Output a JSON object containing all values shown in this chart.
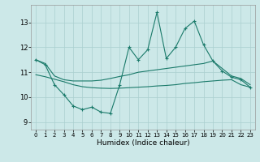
{
  "x": [
    0,
    1,
    2,
    3,
    4,
    5,
    6,
    7,
    8,
    9,
    10,
    11,
    12,
    13,
    14,
    15,
    16,
    17,
    18,
    19,
    20,
    21,
    22,
    23
  ],
  "main_line": [
    11.5,
    11.3,
    10.5,
    10.1,
    9.65,
    9.5,
    9.6,
    9.4,
    9.35,
    10.5,
    12.0,
    11.5,
    11.9,
    13.4,
    11.55,
    12.0,
    12.75,
    13.05,
    12.1,
    11.45,
    11.05,
    10.8,
    10.7,
    10.4
  ],
  "upper_line": [
    11.5,
    11.35,
    10.85,
    10.7,
    10.65,
    10.65,
    10.65,
    10.68,
    10.75,
    10.83,
    10.9,
    11.0,
    11.05,
    11.1,
    11.15,
    11.2,
    11.25,
    11.3,
    11.35,
    11.45,
    11.15,
    10.85,
    10.75,
    10.5
  ],
  "lower_line": [
    10.9,
    10.82,
    10.72,
    10.62,
    10.5,
    10.42,
    10.38,
    10.36,
    10.35,
    10.36,
    10.38,
    10.4,
    10.42,
    10.45,
    10.47,
    10.5,
    10.55,
    10.58,
    10.62,
    10.65,
    10.68,
    10.7,
    10.5,
    10.4
  ],
  "color": "#1a7a6a",
  "bg_color": "#cce8e8",
  "grid_color": "#aacfcf",
  "xlabel": "Humidex (Indice chaleur)",
  "ylim": [
    8.7,
    13.7
  ],
  "xlim": [
    -0.5,
    23.5
  ],
  "yticks": [
    9,
    10,
    11,
    12,
    13
  ],
  "xticks": [
    0,
    1,
    2,
    3,
    4,
    5,
    6,
    7,
    8,
    9,
    10,
    11,
    12,
    13,
    14,
    15,
    16,
    17,
    18,
    19,
    20,
    21,
    22,
    23
  ],
  "figsize": [
    3.2,
    2.0
  ],
  "dpi": 100
}
